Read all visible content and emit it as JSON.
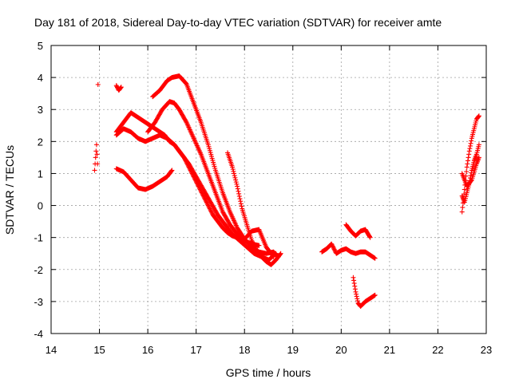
{
  "chart_data": {
    "type": "scatter",
    "title": "Day 181 of 2018, Sidereal Day-to-day VTEC variation (SDTVAR) for receiver amte",
    "xlabel": "GPS time / hours",
    "ylabel": "SDTVAR / TECUs",
    "xlim": [
      14,
      23
    ],
    "ylim": [
      -4,
      5
    ],
    "xticks": [
      14,
      15,
      16,
      17,
      18,
      19,
      20,
      21,
      22,
      23
    ],
    "yticks": [
      -4,
      -3,
      -2,
      -1,
      0,
      1,
      2,
      3,
      4,
      5
    ],
    "grid": true,
    "marker_color": "#ff0000",
    "marker": "plus",
    "tracks": [
      {
        "x": [
          14.9,
          14.92,
          14.94,
          14.96
        ],
        "y": [
          1.1,
          1.5,
          1.9,
          1.3
        ]
      },
      {
        "x": [
          14.97
        ],
        "y": [
          3.78
        ]
      },
      {
        "x": [
          15.35,
          15.4,
          15.45
        ],
        "y": [
          3.75,
          3.6,
          3.7
        ]
      },
      {
        "x": [
          15.35,
          15.45,
          15.55,
          15.65,
          15.75,
          15.85,
          15.95,
          16.05,
          16.15,
          16.25,
          16.35,
          16.45,
          16.55,
          16.65,
          16.75,
          16.85,
          16.95,
          17.05,
          17.15,
          17.25,
          17.35,
          17.45,
          17.55,
          17.65,
          17.75,
          17.85,
          17.95
        ],
        "y": [
          2.3,
          2.5,
          2.7,
          2.9,
          2.8,
          2.7,
          2.6,
          2.5,
          2.4,
          2.3,
          2.2,
          2.0,
          1.9,
          1.7,
          1.5,
          1.2,
          0.9,
          0.6,
          0.3,
          0.0,
          -0.3,
          -0.5,
          -0.7,
          -0.85,
          -0.95,
          -1.0,
          -1.05
        ]
      },
      {
        "x": [
          15.35,
          15.5,
          15.65,
          15.8,
          15.95,
          16.1,
          16.25,
          16.4,
          16.55,
          16.7,
          16.85,
          17.0,
          17.15,
          17.3,
          17.45,
          17.6,
          17.75,
          17.9,
          18.05,
          18.2,
          18.35,
          18.5,
          18.65
        ],
        "y": [
          2.2,
          2.4,
          2.3,
          2.1,
          2.0,
          2.1,
          2.2,
          2.1,
          1.9,
          1.6,
          1.3,
          0.9,
          0.5,
          0.1,
          -0.3,
          -0.6,
          -0.9,
          -1.1,
          -1.3,
          -1.5,
          -1.6,
          -1.7,
          -1.5
        ]
      },
      {
        "x": [
          16.0,
          16.15,
          16.3,
          16.45,
          16.55,
          16.65,
          16.8,
          16.95,
          17.1,
          17.25,
          17.4,
          17.55,
          17.7,
          17.85,
          18.0,
          18.15,
          18.3
        ],
        "y": [
          2.3,
          2.6,
          3.0,
          3.25,
          3.2,
          3.0,
          2.6,
          2.1,
          1.6,
          1.0,
          0.4,
          -0.2,
          -0.6,
          -0.9,
          -1.1,
          -1.2,
          -1.25
        ]
      },
      {
        "x": [
          16.1,
          16.25,
          16.4,
          16.5,
          16.65,
          16.8,
          16.95,
          17.1,
          17.25,
          17.4,
          17.55,
          17.7,
          17.85,
          18.0,
          18.15,
          18.3,
          18.45,
          18.6,
          18.7
        ],
        "y": [
          3.4,
          3.6,
          3.9,
          4.0,
          4.05,
          3.8,
          3.2,
          2.6,
          1.9,
          1.1,
          0.4,
          -0.2,
          -0.7,
          -1.05,
          -1.3,
          -1.45,
          -1.5,
          -1.45,
          -1.6
        ]
      },
      {
        "x": [
          15.35,
          15.5,
          15.65,
          15.8,
          15.95,
          16.1,
          16.25,
          16.4,
          16.5
        ],
        "y": [
          1.15,
          1.05,
          0.8,
          0.55,
          0.5,
          0.6,
          0.75,
          0.9,
          1.1
        ]
      },
      {
        "x": [
          17.65,
          17.75,
          17.85,
          17.95,
          18.05,
          18.15,
          18.25,
          18.35,
          18.45,
          18.55,
          18.65,
          18.75
        ],
        "y": [
          1.65,
          1.2,
          0.6,
          -0.1,
          -0.6,
          -1.1,
          -1.4,
          -1.6,
          -1.75,
          -1.85,
          -1.7,
          -1.5
        ]
      },
      {
        "x": [
          18.0,
          18.15,
          18.3,
          18.45,
          18.6
        ],
        "y": [
          -1.05,
          -0.8,
          -0.75,
          -1.3,
          -1.6
        ]
      },
      {
        "x": [
          19.6,
          19.7,
          19.8,
          19.9,
          20.0,
          20.1,
          20.2,
          20.3,
          20.4,
          20.5,
          20.6,
          20.7
        ],
        "y": [
          -1.45,
          -1.35,
          -1.2,
          -1.5,
          -1.4,
          -1.35,
          -1.45,
          -1.5,
          -1.45,
          -1.45,
          -1.55,
          -1.65
        ]
      },
      {
        "x": [
          20.1,
          20.2,
          20.3,
          20.4,
          20.5,
          20.6
        ],
        "y": [
          -0.6,
          -0.8,
          -0.95,
          -0.8,
          -0.75,
          -1.0
        ]
      },
      {
        "x": [
          20.25,
          20.3,
          20.35,
          20.4,
          20.5,
          20.6,
          20.7
        ],
        "y": [
          -2.25,
          -2.7,
          -3.05,
          -3.15,
          -3.0,
          -2.9,
          -2.8
        ]
      },
      {
        "x": [
          22.5,
          22.55,
          22.6,
          22.65,
          22.7,
          22.75,
          22.8,
          22.85
        ],
        "y": [
          -0.2,
          0.5,
          1.2,
          1.7,
          2.1,
          2.4,
          2.7,
          2.8
        ]
      },
      {
        "x": [
          22.5,
          22.55,
          22.6,
          22.65,
          22.7,
          22.75,
          22.8,
          22.85
        ],
        "y": [
          0.3,
          0.1,
          0.4,
          0.7,
          1.1,
          1.4,
          1.6,
          1.9
        ]
      },
      {
        "x": [
          22.5,
          22.6,
          22.7,
          22.8,
          22.85
        ],
        "y": [
          1.0,
          0.6,
          0.8,
          1.3,
          1.5
        ]
      }
    ]
  }
}
